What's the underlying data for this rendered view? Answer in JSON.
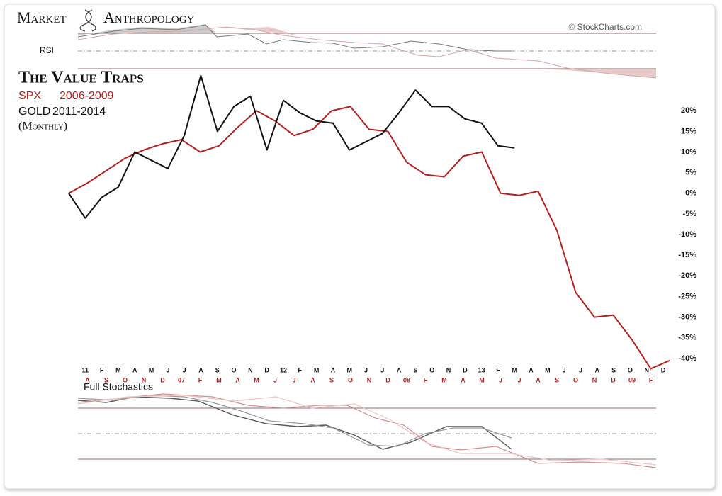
{
  "header": {
    "brand_left": "Market",
    "brand_right": "Anthropology",
    "credit": "© StockCharts.com"
  },
  "chart_data": {
    "type": "line",
    "title": "The Value Traps",
    "note": "(Monthly)",
    "rsi_label": "RSI",
    "stochastics_label": "Full Stochastics",
    "ylim": [
      -45,
      30
    ],
    "yticks": [
      {
        "value": 20,
        "label": "20%"
      },
      {
        "value": 15,
        "label": "15%"
      },
      {
        "value": 10,
        "label": "10%"
      },
      {
        "value": 5,
        "label": "5%"
      },
      {
        "value": 0,
        "label": "0%"
      },
      {
        "value": -5,
        "label": "-5%"
      },
      {
        "value": -10,
        "label": "-10%"
      },
      {
        "value": -15,
        "label": "-15%"
      },
      {
        "value": -20,
        "label": "-20%"
      },
      {
        "value": -25,
        "label": "-25%"
      },
      {
        "value": -30,
        "label": "-30%"
      },
      {
        "value": -35,
        "label": "-35%"
      },
      {
        "value": -40,
        "label": "-40%"
      }
    ],
    "grid": false,
    "series": [
      {
        "name": "SPX",
        "period": "2006-2009",
        "color": "#b3211e",
        "categories": [
          null,
          "A",
          "S",
          "O",
          "N",
          "D",
          "07",
          "F",
          "M",
          "A",
          "M",
          "J",
          "J",
          "A",
          "S",
          "O",
          "N",
          "D",
          "08",
          "F",
          "M",
          "A",
          "M",
          "J",
          "J",
          "A",
          "S",
          "O",
          "N",
          "D",
          "09",
          "F",
          null
        ],
        "values": [
          0,
          2.5,
          5.5,
          8.5,
          10.5,
          12,
          13,
          10,
          11.5,
          16,
          20,
          17.5,
          14,
          15.5,
          20,
          21,
          15.5,
          15,
          7.5,
          4.5,
          4,
          9,
          10,
          0,
          -0.5,
          0.5,
          -9,
          -24,
          -30,
          -29.5,
          -35.5,
          -42.5,
          -40.5
        ]
      },
      {
        "name": "GOLD",
        "period": "2011-2014",
        "color": "#111111",
        "categories": [
          null,
          "11",
          "F",
          "M",
          "A",
          "M",
          "J",
          "J",
          "A",
          "S",
          "O",
          "N",
          "D",
          "12",
          "F",
          "M",
          "A",
          "M",
          "J",
          "J",
          "A",
          "S",
          "O",
          "N",
          "D",
          "13",
          "F",
          "M",
          "A",
          "M",
          "J",
          "J",
          "A",
          "S",
          "O",
          "N",
          "D"
        ],
        "values": [
          0,
          -6,
          -1,
          1.5,
          10,
          8,
          6,
          14,
          28.5,
          15,
          21,
          23.5,
          10.5,
          22.5,
          19.5,
          17.5,
          17,
          10.5,
          12.5,
          14.5,
          19.5,
          25,
          21,
          21,
          18,
          17,
          11.5,
          11,
          null,
          null,
          null,
          null,
          null,
          null,
          null,
          null,
          null
        ]
      }
    ]
  }
}
